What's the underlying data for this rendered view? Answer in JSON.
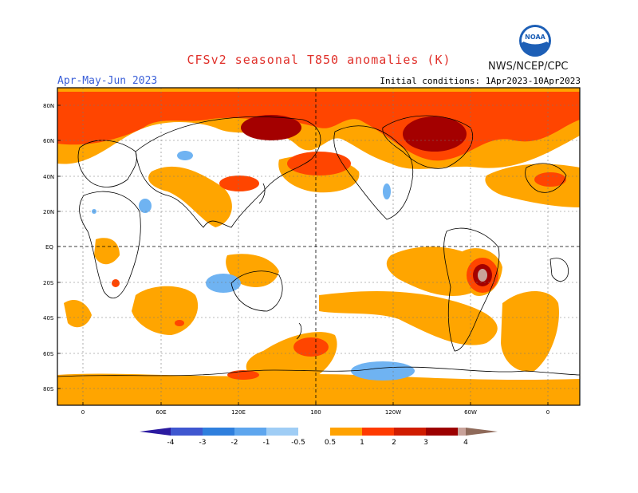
{
  "header": {
    "title": "CFSv2 seasonal T850 anomalies (K)",
    "season": "Apr-May-Jun 2023",
    "initial_conditions": "Initial conditions: 1Apr2023-10Apr2023",
    "agency": "NWS/NCEP/CPC",
    "logo_text": "NOAA"
  },
  "map": {
    "lat_labels": [
      "80N",
      "60N",
      "40N",
      "20N",
      "EQ",
      "20S",
      "40S",
      "60S",
      "80S"
    ],
    "lon_labels": [
      "0",
      "60E",
      "120E",
      "180",
      "120W",
      "60W",
      "0"
    ]
  },
  "colorbar": {
    "labels": [
      "-4",
      "-3",
      "-2",
      "-1",
      "-0.5",
      "0.5",
      "1",
      "2",
      "3",
      "4"
    ],
    "colors": [
      "#2b1aa0",
      "#3f57d0",
      "#2f7fdd",
      "#5ea6ee",
      "#9fcdf5",
      "#ffffff",
      "#ffa200",
      "#ff3a00",
      "#d01c00",
      "#9c0000",
      "#c8a29a",
      "#8f6a5a"
    ]
  },
  "colors": {
    "anom_05_1": "#ffa500",
    "anom_1_2": "#ff4500",
    "anom_2_3": "#d21e00",
    "anom_3_4": "#a40000",
    "anom_gt4": "#c8a29a",
    "anom_neg": "#6fb3f2",
    "title": "#e0302a",
    "season": "#3a5fd8"
  }
}
